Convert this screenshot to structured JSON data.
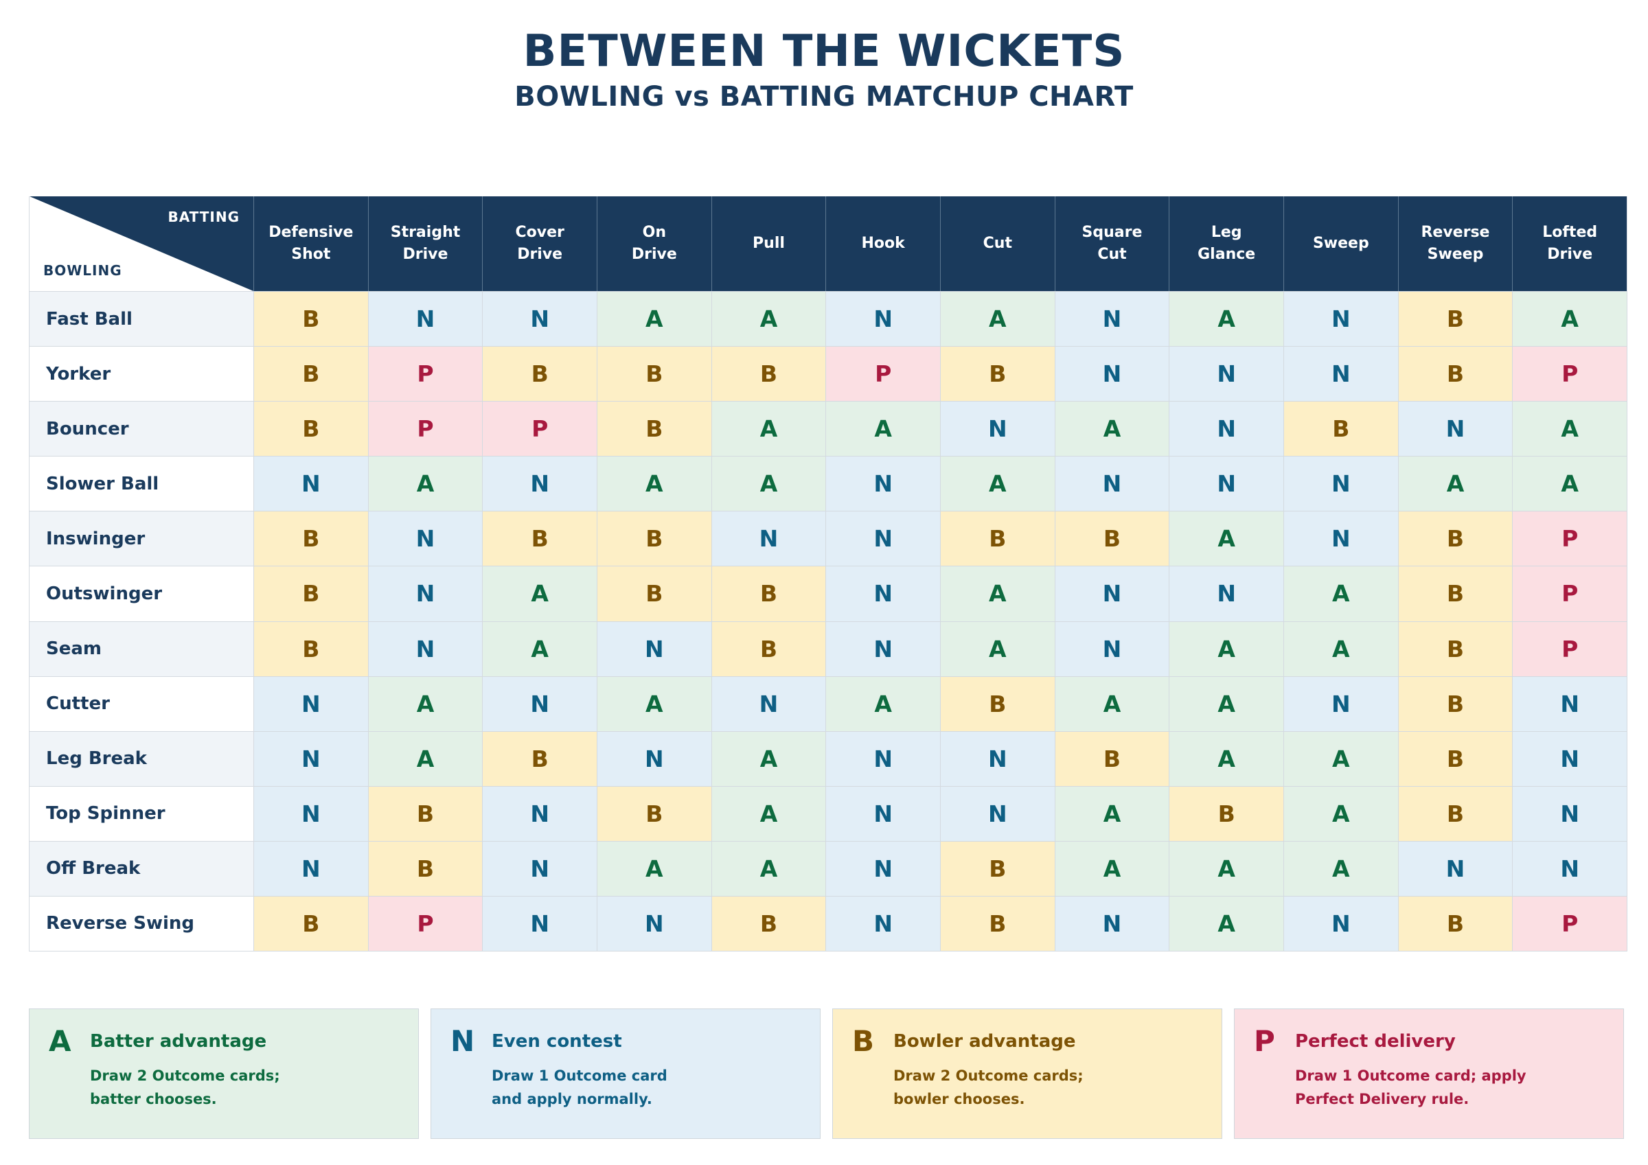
{
  "title": "BETWEEN THE WICKETS",
  "subtitle": "BOWLING vs BATTING MATCHUP CHART",
  "corner": {
    "batting_label": "BATTING",
    "bowling_label": "BOWLING"
  },
  "colors": {
    "header_bg": "#1a3a5c",
    "A": "#0d6b3f",
    "N": "#0e5f84",
    "B": "#7d5305",
    "P": "#a8193f"
  },
  "batting_shots": [
    "Defensive\nShot",
    "Straight\nDrive",
    "Cover\nDrive",
    "On\nDrive",
    "Pull",
    "Hook",
    "Cut",
    "Square\nCut",
    "Leg\nGlance",
    "Sweep",
    "Reverse\nSweep",
    "Lofted\nDrive"
  ],
  "rows": [
    {
      "bowling": "Fast Ball",
      "results": [
        "B",
        "N",
        "N",
        "A",
        "A",
        "N",
        "A",
        "N",
        "A",
        "N",
        "B",
        "A"
      ]
    },
    {
      "bowling": "Yorker",
      "results": [
        "B",
        "P",
        "B",
        "B",
        "B",
        "P",
        "B",
        "N",
        "N",
        "N",
        "B",
        "P"
      ]
    },
    {
      "bowling": "Bouncer",
      "results": [
        "B",
        "P",
        "P",
        "B",
        "A",
        "A",
        "N",
        "A",
        "N",
        "B",
        "N",
        "A"
      ]
    },
    {
      "bowling": "Slower Ball",
      "results": [
        "N",
        "A",
        "N",
        "A",
        "A",
        "N",
        "A",
        "N",
        "N",
        "N",
        "A",
        "A"
      ]
    },
    {
      "bowling": "Inswinger",
      "results": [
        "B",
        "N",
        "B",
        "B",
        "N",
        "N",
        "B",
        "B",
        "A",
        "N",
        "B",
        "P"
      ]
    },
    {
      "bowling": "Outswinger",
      "results": [
        "B",
        "N",
        "A",
        "B",
        "B",
        "N",
        "A",
        "N",
        "N",
        "A",
        "B",
        "P"
      ]
    },
    {
      "bowling": "Seam",
      "results": [
        "B",
        "N",
        "A",
        "N",
        "B",
        "N",
        "A",
        "N",
        "A",
        "A",
        "B",
        "P"
      ]
    },
    {
      "bowling": "Cutter",
      "results": [
        "N",
        "A",
        "N",
        "A",
        "N",
        "A",
        "B",
        "A",
        "A",
        "N",
        "B",
        "N"
      ]
    },
    {
      "bowling": "Leg Break",
      "results": [
        "N",
        "A",
        "B",
        "N",
        "A",
        "N",
        "N",
        "B",
        "A",
        "A",
        "B",
        "N"
      ]
    },
    {
      "bowling": "Top Spinner",
      "results": [
        "N",
        "B",
        "N",
        "B",
        "A",
        "N",
        "N",
        "A",
        "B",
        "A",
        "B",
        "N"
      ]
    },
    {
      "bowling": "Off Break",
      "results": [
        "N",
        "B",
        "N",
        "A",
        "A",
        "N",
        "B",
        "A",
        "A",
        "A",
        "N",
        "N"
      ]
    },
    {
      "bowling": "Reverse Swing",
      "results": [
        "B",
        "P",
        "N",
        "N",
        "B",
        "N",
        "B",
        "N",
        "A",
        "N",
        "B",
        "P"
      ]
    }
  ],
  "legend": [
    {
      "code": "A",
      "title": "Batter advantage",
      "description": "Draw 2 Outcome cards;\nbatter chooses."
    },
    {
      "code": "N",
      "title": "Even contest",
      "description": "Draw 1 Outcome card\nand apply normally."
    },
    {
      "code": "B",
      "title": "Bowler advantage",
      "description": "Draw 2 Outcome cards;\nbowler chooses."
    },
    {
      "code": "P",
      "title": "Perfect delivery",
      "description": "Draw 1 Outcome card; apply\nPerfect Delivery rule."
    }
  ]
}
